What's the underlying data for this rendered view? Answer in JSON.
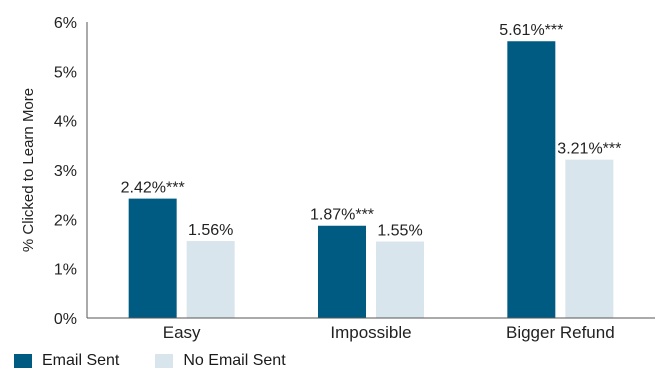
{
  "colors": {
    "email_sent": "#005b82",
    "no_email_sent": "#d9e5ec",
    "axis": "#555555"
  },
  "chart_data": {
    "type": "bar",
    "title": "",
    "xlabel": "",
    "ylabel": "% Clicked to Learn More",
    "ylim": [
      0,
      6
    ],
    "yticks": [
      "0%",
      "1%",
      "2%",
      "3%",
      "4%",
      "5%",
      "6%"
    ],
    "categories": [
      "Easy",
      "Impossible",
      "Bigger Refund"
    ],
    "series": [
      {
        "name": "Email Sent",
        "values": [
          2.42,
          1.87,
          5.61
        ],
        "labels": [
          "2.42%***",
          "1.87%***",
          "5.61%***"
        ]
      },
      {
        "name": "No Email Sent",
        "values": [
          1.56,
          1.55,
          3.21
        ],
        "labels": [
          "1.56%",
          "1.55%",
          "3.21%***"
        ]
      }
    ],
    "legend": "bottom-left",
    "grid": false
  }
}
